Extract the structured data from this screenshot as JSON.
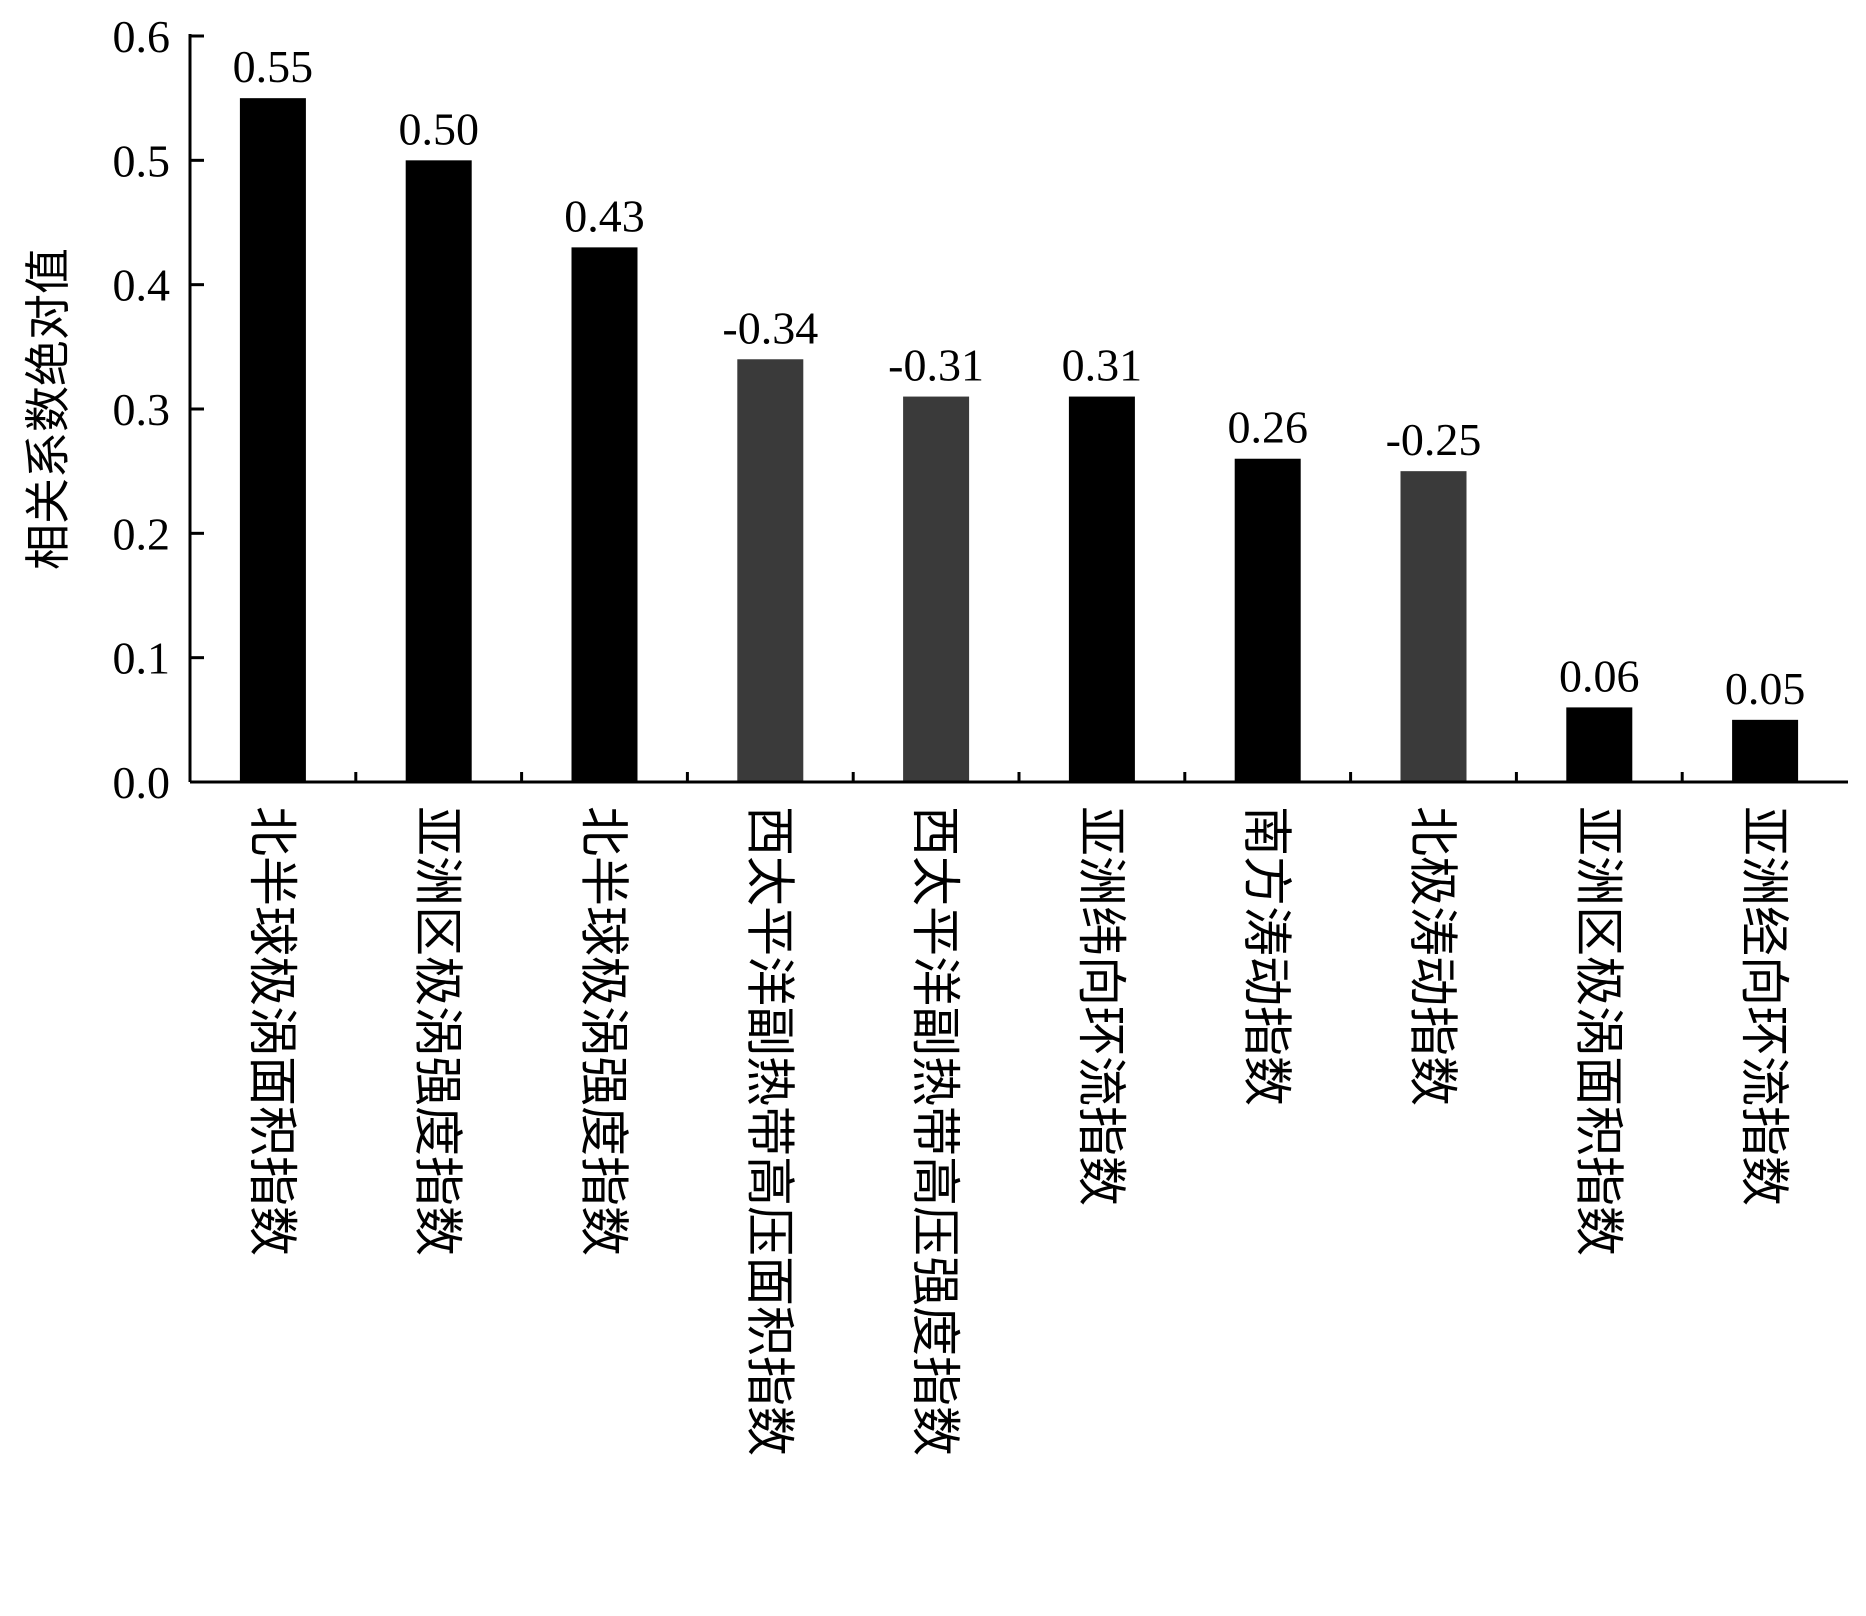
{
  "chart_data": {
    "type": "bar",
    "ylabel": "相关系数绝对值",
    "xlabel": "",
    "title": "",
    "ylim": [
      0,
      0.6
    ],
    "yticks": [
      "0.0",
      "0.1",
      "0.2",
      "0.3",
      "0.4",
      "0.5",
      "0.6"
    ],
    "grid": false,
    "categories": [
      "北半球极涡面积指数",
      "亚洲区极涡强度指数",
      "北半球极涡强度指数",
      "西太平洋副热带高压面积指数",
      "西太平洋副热带高压强度指数",
      "亚洲纬向环流指数",
      "南方涛动指数",
      "北极涛动指数",
      "亚洲区极涡面积指数",
      "亚洲经向环流指数"
    ],
    "values": [
      0.55,
      0.5,
      0.43,
      0.34,
      0.31,
      0.31,
      0.26,
      0.25,
      0.06,
      0.05
    ],
    "data_labels": [
      "0.55",
      "0.50",
      "0.43",
      "-0.34",
      "-0.31",
      "0.31",
      "0.26",
      "-0.25",
      "0.06",
      "0.05"
    ],
    "bar_colors": [
      "#000000",
      "#000000",
      "#000000",
      "#3a3a3a",
      "#3a3a3a",
      "#000000",
      "#000000",
      "#3a3a3a",
      "#000000",
      "#000000"
    ]
  }
}
